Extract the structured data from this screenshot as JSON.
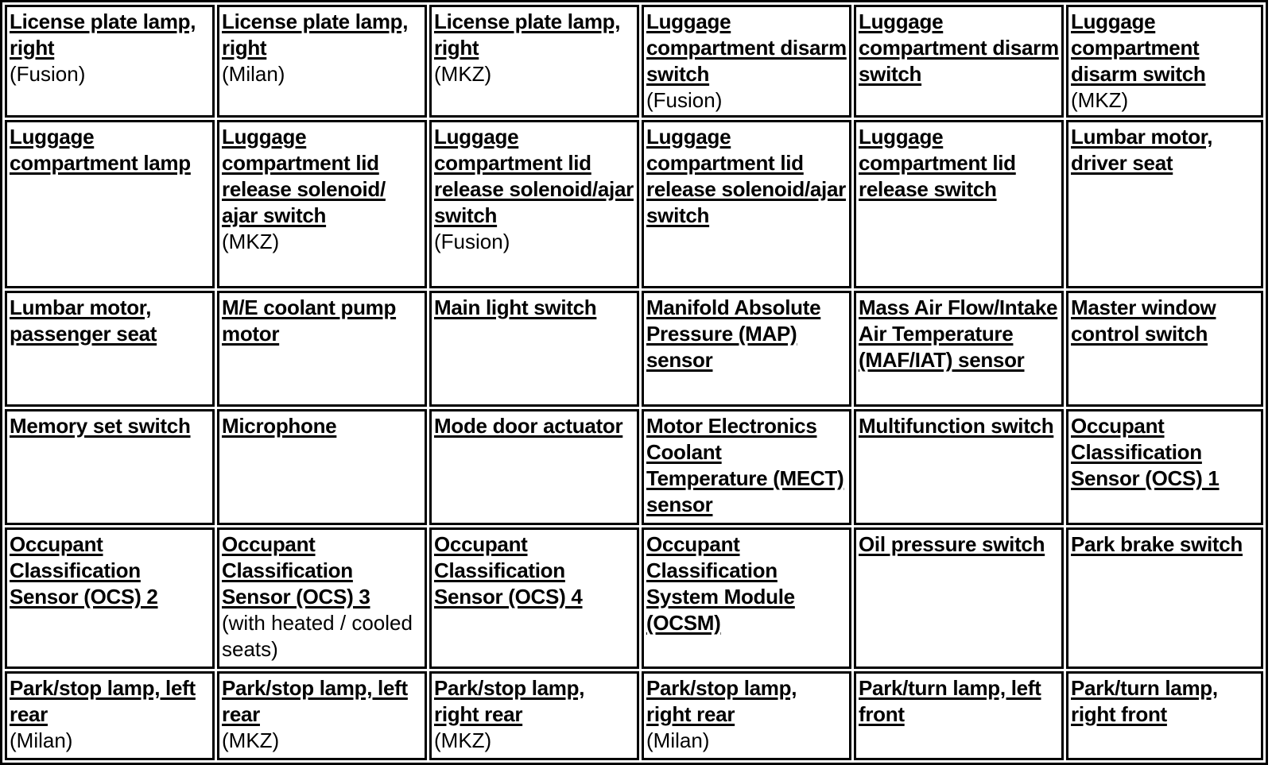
{
  "rows": [
    [
      {
        "title": "License plate lamp, right",
        "note": "(Fusion)"
      },
      {
        "title": "License plate lamp, right",
        "note": "(Milan)"
      },
      {
        "title": "License plate lamp, right",
        "note": "(MKZ)"
      },
      {
        "title": "Luggage compartment disarm switch",
        "note": "(Fusion)"
      },
      {
        "title": "Luggage compartment disarm switch",
        "note": ""
      },
      {
        "title": "Luggage compartment disarm switch",
        "note": "(MKZ)"
      }
    ],
    [
      {
        "title": "Luggage compartment lamp",
        "note": ""
      },
      {
        "title": "Luggage compartment lid release solenoid/ ajar switch",
        "note": "(MKZ)"
      },
      {
        "title": "Luggage compartment lid release solenoid/ajar switch",
        "note": "(Fusion)"
      },
      {
        "title": "Luggage compartment lid release solenoid/ajar switch",
        "note": ""
      },
      {
        "title": "Luggage compartment lid release switch",
        "note": ""
      },
      {
        "title": "Lumbar motor, driver seat",
        "note": ""
      }
    ],
    [
      {
        "title": "Lumbar motor, passenger seat",
        "note": ""
      },
      {
        "title": "M/E coolant pump motor",
        "note": ""
      },
      {
        "title": "Main light switch",
        "note": ""
      },
      {
        "title": "Manifold Absolute Pressure (MAP) sensor",
        "note": ""
      },
      {
        "title": "Mass Air Flow/Intake Air Temperature (MAF/IAT) sensor",
        "note": ""
      },
      {
        "title": "Master window control switch",
        "note": ""
      }
    ],
    [
      {
        "title": "Memory set switch",
        "note": ""
      },
      {
        "title": "Microphone",
        "note": ""
      },
      {
        "title": "Mode door actuator",
        "note": ""
      },
      {
        "title": "Motor Electronics Coolant Temperature (MECT) sensor",
        "note": ""
      },
      {
        "title": "Multifunction switch",
        "note": ""
      },
      {
        "title": "Occupant Classification Sensor (OCS) 1",
        "note": ""
      }
    ],
    [
      {
        "title": "Occupant Classification Sensor (OCS) 2",
        "note": ""
      },
      {
        "title": "Occupant Classification Sensor (OCS) 3",
        "note": "(with heated / cooled seats)"
      },
      {
        "title": "Occupant Classification Sensor (OCS) 4",
        "note": ""
      },
      {
        "title": "Occupant Classification System Module (OCSM)",
        "note": ""
      },
      {
        "title": "Oil pressure switch",
        "note": ""
      },
      {
        "title": "Park brake switch",
        "note": ""
      }
    ],
    [
      {
        "title": "Park/stop lamp, left rear",
        "note": "(Milan)"
      },
      {
        "title": "Park/stop lamp, left rear",
        "note": "(MKZ)"
      },
      {
        "title": "Park/stop lamp, right rear",
        "note": "(MKZ)"
      },
      {
        "title": "Park/stop lamp, right rear",
        "note": "(Milan)"
      },
      {
        "title": "Park/turn lamp, left front",
        "note": ""
      },
      {
        "title": "Park/turn lamp, right front",
        "note": ""
      }
    ]
  ]
}
